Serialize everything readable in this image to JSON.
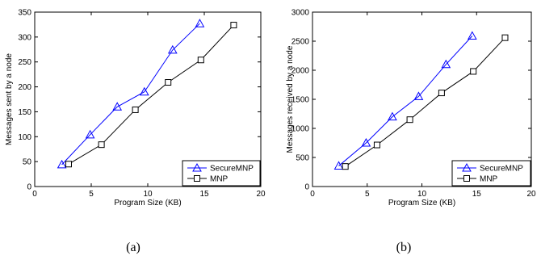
{
  "chart_data": [
    {
      "type": "line",
      "caption": "(a)",
      "xlabel": "Program Size (KB)",
      "ylabel": "Messages sent by a node",
      "xlim": [
        0,
        20
      ],
      "ylim": [
        0,
        350
      ],
      "xticks": [
        0,
        5,
        10,
        15,
        20
      ],
      "yticks": [
        0,
        50,
        100,
        150,
        200,
        250,
        300,
        350
      ],
      "grid": false,
      "legend": "bottom-right",
      "series": [
        {
          "name": "SecureMNP",
          "color": "#0000ff",
          "marker": "triangle",
          "x": [
            2.4,
            4.9,
            7.3,
            9.7,
            12.2,
            14.6
          ],
          "y": [
            44,
            104,
            160,
            190,
            274,
            327
          ]
        },
        {
          "name": "MNP",
          "color": "#000000",
          "marker": "square",
          "x": [
            3.0,
            5.9,
            8.9,
            11.8,
            14.7,
            17.6
          ],
          "y": [
            45,
            84,
            154,
            209,
            254,
            324
          ]
        }
      ]
    },
    {
      "type": "line",
      "caption": "(b)",
      "xlabel": "Program Size (KB)",
      "ylabel": "Messages received by a node",
      "xlim": [
        0,
        20
      ],
      "ylim": [
        0,
        3000
      ],
      "xticks": [
        0,
        5,
        10,
        15,
        20
      ],
      "yticks": [
        0,
        500,
        1000,
        1500,
        2000,
        2500,
        3000
      ],
      "grid": false,
      "legend": "bottom-right",
      "series": [
        {
          "name": "SecureMNP",
          "color": "#0000ff",
          "marker": "triangle",
          "x": [
            2.4,
            4.9,
            7.3,
            9.7,
            12.2,
            14.6
          ],
          "y": [
            355,
            750,
            1200,
            1550,
            2100,
            2590
          ]
        },
        {
          "name": "MNP",
          "color": "#000000",
          "marker": "square",
          "x": [
            3.0,
            5.9,
            8.9,
            11.8,
            14.7,
            17.6
          ],
          "y": [
            345,
            715,
            1150,
            1610,
            1980,
            2560
          ]
        }
      ]
    }
  ]
}
